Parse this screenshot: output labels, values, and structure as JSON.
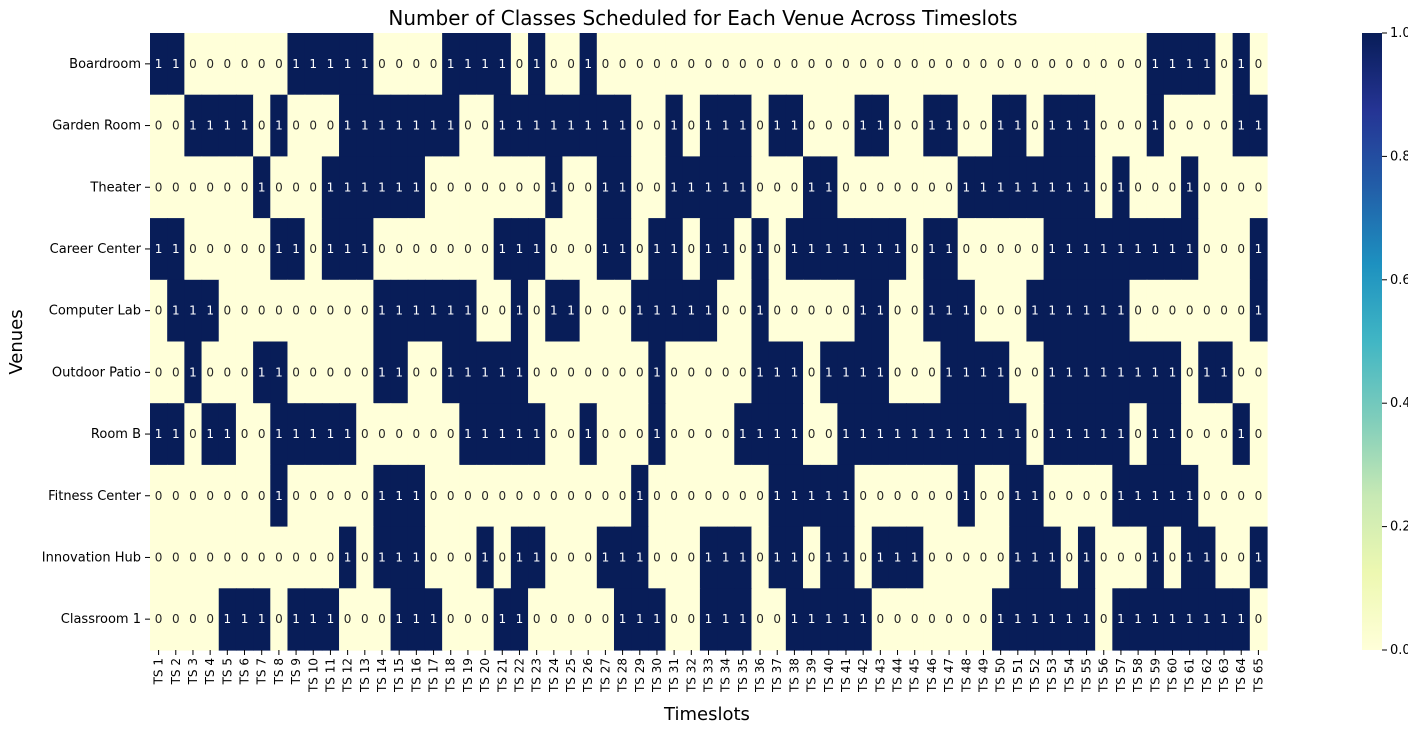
{
  "chart_data": {
    "type": "heatmap",
    "title": "Number of Classes Scheduled for Each Venue Across Timeslots",
    "xlabel": "Timeslots",
    "ylabel": "Venues",
    "x": [
      "TS 1",
      "TS 2",
      "TS 3",
      "TS 4",
      "TS 5",
      "TS 6",
      "TS 7",
      "TS 8",
      "TS 9",
      "TS 10",
      "TS 11",
      "TS 12",
      "TS 13",
      "TS 14",
      "TS 15",
      "TS 16",
      "TS 17",
      "TS 18",
      "TS 19",
      "TS 20",
      "TS 21",
      "TS 22",
      "TS 23",
      "TS 24",
      "TS 25",
      "TS 26",
      "TS 27",
      "TS 28",
      "TS 29",
      "TS 30",
      "TS 31",
      "TS 32",
      "TS 33",
      "TS 34",
      "TS 35",
      "TS 36",
      "TS 37",
      "TS 38",
      "TS 39",
      "TS 40",
      "TS 41",
      "TS 42",
      "TS 43",
      "TS 44",
      "TS 45",
      "TS 46",
      "TS 47",
      "TS 48",
      "TS 49",
      "TS 50",
      "TS 51",
      "TS 52",
      "TS 53",
      "TS 54",
      "TS 55",
      "TS 56",
      "TS 57",
      "TS 58",
      "TS 59",
      "TS 60",
      "TS 61",
      "TS 62",
      "TS 63",
      "TS 64",
      "TS 65"
    ],
    "y": [
      "Boardroom",
      "Garden Room",
      "Theater",
      "Career Center",
      "Computer Lab",
      "Outdoor Patio",
      "Room B",
      "Fitness Center",
      "Innovation Hub",
      "Classroom 1"
    ],
    "values": [
      [
        1,
        1,
        0,
        0,
        0,
        0,
        0,
        0,
        1,
        1,
        1,
        1,
        1,
        0,
        0,
        0,
        0,
        1,
        1,
        1,
        1,
        0,
        1,
        0,
        0,
        1,
        0,
        0,
        0,
        0,
        0,
        0,
        0,
        0,
        0,
        0,
        0,
        0,
        0,
        0,
        0,
        0,
        0,
        0,
        0,
        0,
        0,
        0,
        0,
        0,
        0,
        0,
        0,
        0,
        0,
        0,
        0,
        0,
        1,
        1,
        1,
        1,
        0,
        1,
        0
      ],
      [
        0,
        0,
        1,
        1,
        1,
        1,
        0,
        1,
        0,
        0,
        0,
        1,
        1,
        1,
        1,
        1,
        1,
        1,
        0,
        0,
        1,
        1,
        1,
        1,
        1,
        1,
        1,
        1,
        0,
        0,
        1,
        0,
        1,
        1,
        1,
        0,
        1,
        1,
        0,
        0,
        0,
        1,
        1,
        0,
        0,
        1,
        1,
        0,
        0,
        1,
        1,
        0,
        1,
        1,
        1,
        0,
        0,
        0,
        1,
        0,
        0,
        0,
        0,
        1,
        1
      ],
      [
        0,
        0,
        0,
        0,
        0,
        0,
        1,
        0,
        0,
        0,
        1,
        1,
        1,
        1,
        1,
        1,
        0,
        0,
        0,
        0,
        0,
        0,
        0,
        1,
        0,
        0,
        1,
        1,
        0,
        0,
        1,
        1,
        1,
        1,
        1,
        0,
        0,
        0,
        1,
        1,
        0,
        0,
        0,
        0,
        0,
        0,
        0,
        1,
        1,
        1,
        1,
        1,
        1,
        1,
        1,
        0,
        1,
        0,
        0,
        0,
        1,
        0,
        0,
        0,
        0
      ],
      [
        1,
        1,
        0,
        0,
        0,
        0,
        0,
        1,
        1,
        0,
        1,
        1,
        1,
        0,
        0,
        0,
        0,
        0,
        0,
        0,
        1,
        1,
        1,
        0,
        0,
        0,
        1,
        1,
        0,
        1,
        1,
        0,
        1,
        1,
        0,
        1,
        0,
        1,
        1,
        1,
        1,
        1,
        1,
        1,
        0,
        1,
        1,
        0,
        0,
        0,
        0,
        0,
        1,
        1,
        1,
        1,
        1,
        1,
        1,
        1,
        1,
        0,
        0,
        0,
        1
      ],
      [
        0,
        1,
        1,
        1,
        0,
        0,
        0,
        0,
        0,
        0,
        0,
        0,
        0,
        1,
        1,
        1,
        1,
        1,
        1,
        0,
        0,
        1,
        0,
        1,
        1,
        0,
        0,
        0,
        1,
        1,
        1,
        1,
        1,
        0,
        0,
        1,
        0,
        0,
        0,
        0,
        0,
        1,
        1,
        0,
        0,
        1,
        1,
        1,
        0,
        0,
        0,
        1,
        1,
        1,
        1,
        1,
        1,
        0,
        0,
        0,
        0,
        0,
        0,
        0,
        1
      ],
      [
        0,
        0,
        1,
        0,
        0,
        0,
        1,
        1,
        0,
        0,
        0,
        0,
        0,
        1,
        1,
        0,
        0,
        1,
        1,
        1,
        1,
        1,
        0,
        0,
        0,
        0,
        0,
        0,
        0,
        1,
        0,
        0,
        0,
        0,
        0,
        1,
        1,
        1,
        0,
        1,
        1,
        1,
        1,
        0,
        0,
        0,
        1,
        1,
        1,
        1,
        0,
        0,
        1,
        1,
        1,
        1,
        1,
        1,
        1,
        1,
        0,
        1,
        1,
        0,
        0
      ],
      [
        1,
        1,
        0,
        1,
        1,
        0,
        0,
        1,
        1,
        1,
        1,
        1,
        0,
        0,
        0,
        0,
        0,
        0,
        1,
        1,
        1,
        1,
        1,
        0,
        0,
        1,
        0,
        0,
        0,
        1,
        0,
        0,
        0,
        0,
        1,
        1,
        1,
        1,
        0,
        0,
        1,
        1,
        1,
        1,
        1,
        1,
        1,
        1,
        1,
        1,
        1,
        0,
        1,
        1,
        1,
        1,
        1,
        0,
        1,
        1,
        0,
        0,
        0,
        1,
        0
      ],
      [
        0,
        0,
        0,
        0,
        0,
        0,
        0,
        1,
        0,
        0,
        0,
        0,
        0,
        1,
        1,
        1,
        0,
        0,
        0,
        0,
        0,
        0,
        0,
        0,
        0,
        0,
        0,
        0,
        1,
        0,
        0,
        0,
        0,
        0,
        0,
        0,
        1,
        1,
        1,
        1,
        1,
        0,
        0,
        0,
        0,
        0,
        0,
        1,
        0,
        0,
        1,
        1,
        0,
        0,
        0,
        0,
        1,
        1,
        1,
        1,
        1,
        0,
        0,
        0,
        0
      ],
      [
        0,
        0,
        0,
        0,
        0,
        0,
        0,
        0,
        0,
        0,
        0,
        1,
        0,
        1,
        1,
        1,
        0,
        0,
        0,
        1,
        0,
        1,
        1,
        0,
        0,
        0,
        1,
        1,
        1,
        0,
        0,
        0,
        1,
        1,
        1,
        0,
        1,
        1,
        0,
        1,
        1,
        0,
        1,
        1,
        1,
        0,
        0,
        0,
        0,
        0,
        1,
        1,
        1,
        0,
        1,
        0,
        0,
        0,
        1,
        0,
        1,
        1,
        0,
        0,
        1
      ],
      [
        0,
        0,
        0,
        0,
        1,
        1,
        1,
        0,
        1,
        1,
        1,
        0,
        0,
        0,
        1,
        1,
        1,
        0,
        0,
        0,
        1,
        1,
        0,
        0,
        0,
        0,
        0,
        1,
        1,
        1,
        0,
        0,
        1,
        1,
        1,
        0,
        0,
        1,
        1,
        1,
        1,
        1,
        0,
        0,
        0,
        0,
        0,
        0,
        0,
        1,
        1,
        1,
        1,
        1,
        1,
        0,
        1,
        1,
        1,
        1,
        1,
        1,
        1,
        1,
        0
      ]
    ],
    "colorbar": {
      "ticks": [
        "0.0",
        "0.2",
        "0.4",
        "0.6",
        "0.8",
        "1.0"
      ],
      "range": [
        0,
        1
      ],
      "colormap": "YlGnBu",
      "colors": [
        "#ffffd9",
        "#edf8b1",
        "#c7e9b4",
        "#7fcdbb",
        "#41b6c4",
        "#1d91c0",
        "#225ea8",
        "#253494",
        "#081d58"
      ]
    },
    "annotations": true
  }
}
